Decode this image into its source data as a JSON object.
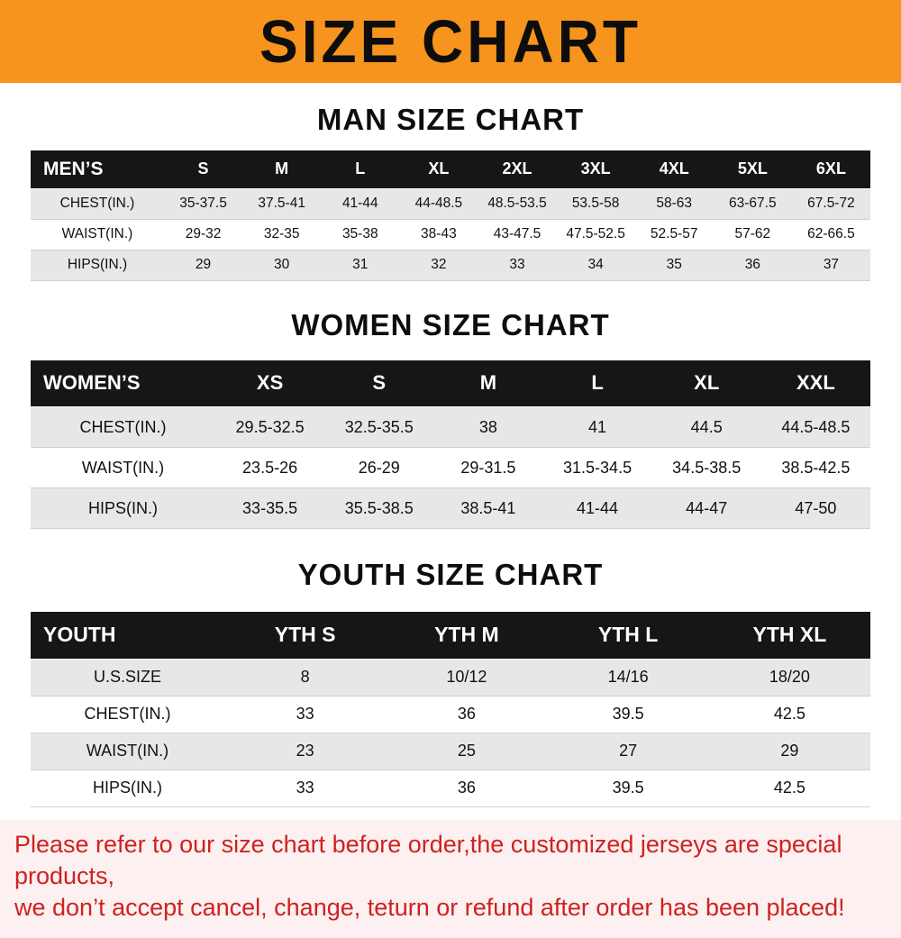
{
  "colors": {
    "banner_bg": "#f7941e",
    "table_header_bg": "#161616",
    "row_alt_bg": "#e7e7e7",
    "footer_text": "#cf2121"
  },
  "banner": {
    "title": "SIZE CHART"
  },
  "sections": [
    {
      "heading": "MAN SIZE CHART",
      "table": {
        "header": [
          "MEN’S",
          "S",
          "M",
          "L",
          "XL",
          "2XL",
          "3XL",
          "4XL",
          "5XL",
          "6XL"
        ],
        "rows": [
          [
            "CHEST(IN.)",
            "35-37.5",
            "37.5-41",
            "41-44",
            "44-48.5",
            "48.5-53.5",
            "53.5-58",
            "58-63",
            "63-67.5",
            "67.5-72"
          ],
          [
            "WAIST(IN.)",
            "29-32",
            "32-35",
            "35-38",
            "38-43",
            "43-47.5",
            "47.5-52.5",
            "52.5-57",
            "57-62",
            "62-66.5"
          ],
          [
            "HIPS(IN.)",
            "29",
            "30",
            "31",
            "32",
            "33",
            "34",
            "35",
            "36",
            "37"
          ]
        ]
      }
    },
    {
      "heading": "WOMEN SIZE CHART",
      "table": {
        "header": [
          "WOMEN’S",
          "XS",
          "S",
          "M",
          "L",
          "XL",
          "XXL"
        ],
        "rows": [
          [
            "CHEST(IN.)",
            "29.5-32.5",
            "32.5-35.5",
            "38",
            "41",
            "44.5",
            "44.5-48.5"
          ],
          [
            "WAIST(IN.)",
            "23.5-26",
            "26-29",
            "29-31.5",
            "31.5-34.5",
            "34.5-38.5",
            "38.5-42.5"
          ],
          [
            "HIPS(IN.)",
            "33-35.5",
            "35.5-38.5",
            "38.5-41",
            "41-44",
            "44-47",
            "47-50"
          ]
        ]
      }
    },
    {
      "heading": "YOUTH SIZE CHART",
      "table": {
        "header": [
          "YOUTH",
          "YTH S",
          "YTH M",
          "YTH L",
          "YTH XL"
        ],
        "rows": [
          [
            "U.S.SIZE",
            "8",
            "10/12",
            "14/16",
            "18/20"
          ],
          [
            "CHEST(IN.)",
            "33",
            "36",
            "39.5",
            "42.5"
          ],
          [
            "WAIST(IN.)",
            "23",
            "25",
            "27",
            "29"
          ],
          [
            "HIPS(IN.)",
            "33",
            "36",
            "39.5",
            "42.5"
          ]
        ]
      }
    }
  ],
  "footer": {
    "line1": "Please refer to our size chart before order,the customized jerseys are special products,",
    "line2": "we don’t accept cancel, change, teturn or refund after order has been placed!"
  }
}
